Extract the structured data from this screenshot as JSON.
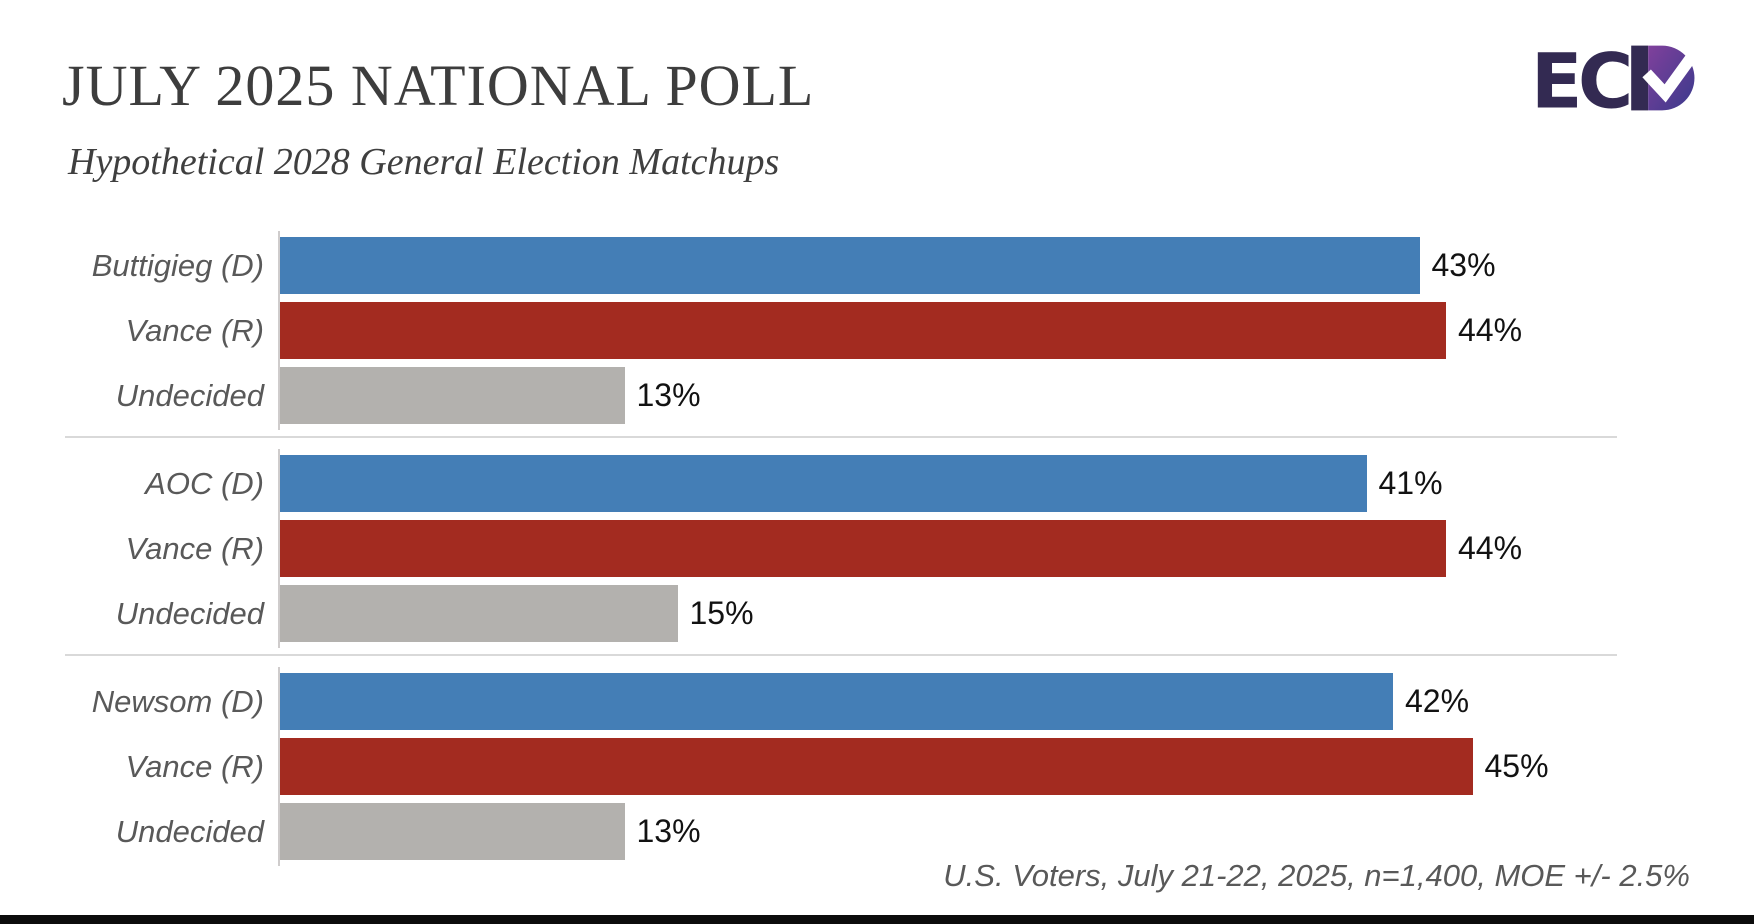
{
  "header": {
    "title": "JULY 2025 NATIONAL POLL",
    "subtitle": "Hypothetical 2028 General Election Matchups",
    "logo": {
      "text": "ECP",
      "ec": "EC",
      "dark": "#332a52",
      "purple": "#80409c",
      "indigo": "#3a3a8c"
    }
  },
  "chart_data": {
    "type": "bar",
    "orientation": "horizontal",
    "value_unit": "%",
    "xlim": [
      0,
      47
    ],
    "grid": false,
    "legend": "none",
    "bar_colors": {
      "democrat": "#447EB6",
      "republican": "#A32B20",
      "undecided": "#B3B1AE"
    },
    "groups": [
      {
        "bars": [
          {
            "label": "Buttigieg (D)",
            "value": 43,
            "display": "43%",
            "party": "democrat"
          },
          {
            "label": "Vance (R)",
            "value": 44,
            "display": "44%",
            "party": "republican"
          },
          {
            "label": "Undecided",
            "value": 13,
            "display": "13%",
            "party": "undecided"
          }
        ]
      },
      {
        "bars": [
          {
            "label": "AOC (D)",
            "value": 41,
            "display": "41%",
            "party": "democrat"
          },
          {
            "label": "Vance (R)",
            "value": 44,
            "display": "44%",
            "party": "republican"
          },
          {
            "label": "Undecided",
            "value": 15,
            "display": "15%",
            "party": "undecided"
          }
        ]
      },
      {
        "bars": [
          {
            "label": "Newsom (D)",
            "value": 42,
            "display": "42%",
            "party": "democrat"
          },
          {
            "label": "Vance (R)",
            "value": 45,
            "display": "45%",
            "party": "republican"
          },
          {
            "label": "Undecided",
            "value": 13,
            "display": "13%",
            "party": "undecided"
          }
        ]
      }
    ],
    "source_note": "U.S. Voters, July 21-22, 2025, n=1,400, MOE +/- 2.5%"
  }
}
